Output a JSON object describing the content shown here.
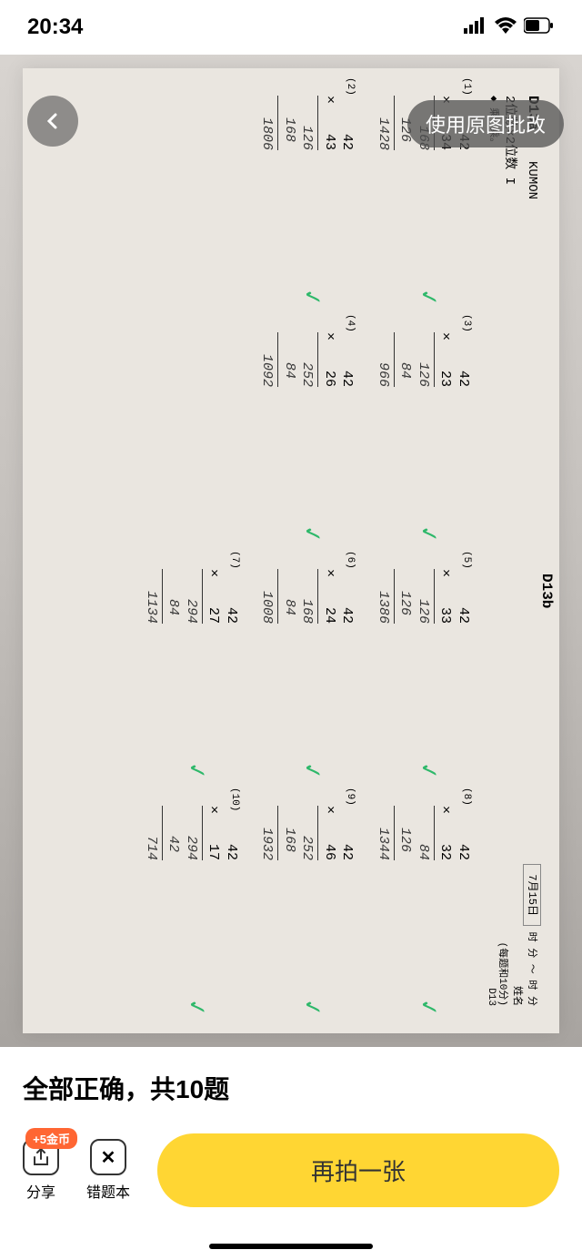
{
  "status_bar": {
    "time": "20:34"
  },
  "overlay": {
    "use_original_label": "使用原图批改"
  },
  "worksheet": {
    "section_a_id": "D13a",
    "section_b_id": "D13b",
    "brand": "KUMON",
    "page_code": "D13",
    "title": "2位数×2位数 I",
    "instruction": "◆ 乘一乘。",
    "date_label": "7月15日",
    "score_label": "(每题和10分)",
    "time_label": "时 分 ～ 时 分",
    "name_label": "姓名",
    "problems": [
      {
        "num": "(1)",
        "a": "42",
        "b": "34",
        "p1": "168",
        "p2": "126",
        "ans": "1428"
      },
      {
        "num": "(3)",
        "a": "42",
        "b": "23",
        "p1": "126",
        "p2": "84",
        "ans": "966"
      },
      {
        "num": "(5)",
        "a": "42",
        "b": "33",
        "p1": "126",
        "p2": "126",
        "ans": "1386"
      },
      {
        "num": "(8)",
        "a": "42",
        "b": "32",
        "p1": "84",
        "p2": "126",
        "ans": "1344"
      },
      {
        "num": "(2)",
        "a": "42",
        "b": "43",
        "p1": "126",
        "p2": "168",
        "ans": "1806"
      },
      {
        "num": "(4)",
        "a": "42",
        "b": "26",
        "p1": "252",
        "p2": "84",
        "ans": "1092"
      },
      {
        "num": "(6)",
        "a": "42",
        "b": "24",
        "p1": "168",
        "p2": "84",
        "ans": "1008"
      },
      {
        "num": "(9)",
        "a": "42",
        "b": "46",
        "p1": "252",
        "p2": "168",
        "ans": "1932"
      },
      {
        "num": "",
        "a": "",
        "b": "",
        "p1": "",
        "p2": "",
        "ans": ""
      },
      {
        "num": "",
        "a": "",
        "b": "",
        "p1": "",
        "p2": "",
        "ans": ""
      },
      {
        "num": "(7)",
        "a": "42",
        "b": "27",
        "p1": "294",
        "p2": "84",
        "ans": "1134"
      },
      {
        "num": "(10)",
        "a": "42",
        "b": "17",
        "p1": "294",
        "p2": "42",
        "ans": "714"
      }
    ]
  },
  "result": {
    "text": "全部正确，共10题"
  },
  "actions": {
    "share_label": "分享",
    "coin_badge": "+5金币",
    "errorbook_label": "错题本",
    "retake_label": "再拍一张"
  },
  "colors": {
    "check_mark": "#2eb86a",
    "primary_button": "#ffd633",
    "badge": "#ff6633"
  }
}
